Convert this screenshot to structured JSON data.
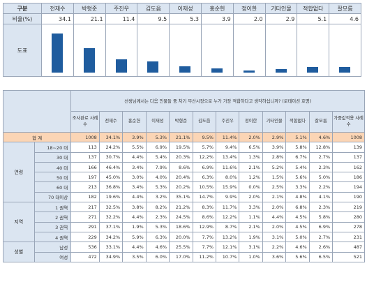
{
  "top": {
    "header_label": "구분",
    "ratio_label": "비율(%)",
    "chart_label": "도표",
    "candidates": [
      "전재수",
      "박형준",
      "주진우",
      "김도읍",
      "이재성",
      "홍순헌",
      "정이한",
      "기타인물",
      "적합없다",
      "잘모름"
    ],
    "values": [
      "34.1",
      "21.1",
      "11.4",
      "9.5",
      "5.3",
      "3.9",
      "2.0",
      "2.9",
      "5.1",
      "4.6"
    ],
    "bar_color": "#1f5c9e"
  },
  "main": {
    "question": "선생님께서는 다음 인물들 중 차기 부산시장으로 누가 가장 적합하다고 생각하십니까? (로테이션 호명)",
    "col_headers": [
      "조사완료 사례수",
      "전재수",
      "홍순헌",
      "이재성",
      "박형준",
      "김도읍",
      "주진우",
      "정이한",
      "기타인물",
      "적합없다",
      "잘모름",
      "가중값적용 사례수"
    ],
    "total": {
      "label": "합 계",
      "values": [
        "1008",
        "34.1%",
        "3.9%",
        "5.3%",
        "21.1%",
        "9.5%",
        "11.4%",
        "2.0%",
        "2.9%",
        "5.1%",
        "4.6%",
        "1008"
      ]
    },
    "groups": [
      {
        "name": "연령",
        "rows": [
          {
            "label": "18~20 대",
            "values": [
              "113",
              "24.2%",
              "5.5%",
              "6.9%",
              "19.5%",
              "5.7%",
              "9.4%",
              "6.5%",
              "3.9%",
              "5.8%",
              "12.8%",
              "139"
            ]
          },
          {
            "label": "30 대",
            "values": [
              "137",
              "30.7%",
              "4.4%",
              "5.4%",
              "20.3%",
              "12.2%",
              "13.4%",
              "1.3%",
              "2.8%",
              "6.7%",
              "2.7%",
              "137"
            ]
          },
          {
            "label": "40 대",
            "values": [
              "166",
              "46.4%",
              "3.4%",
              "7.9%",
              "8.6%",
              "6.9%",
              "11.6%",
              "2.1%",
              "5.2%",
              "5.4%",
              "2.3%",
              "162"
            ]
          },
          {
            "label": "50 대",
            "values": [
              "197",
              "45.0%",
              "3.0%",
              "4.0%",
              "20.4%",
              "6.3%",
              "8.0%",
              "1.2%",
              "1.5%",
              "5.6%",
              "5.0%",
              "186"
            ]
          },
          {
            "label": "60 대",
            "values": [
              "213",
              "36.8%",
              "3.4%",
              "5.3%",
              "20.2%",
              "10.5%",
              "15.9%",
              "0.0%",
              "2.5%",
              "3.3%",
              "2.2%",
              "194"
            ]
          },
          {
            "label": "70 대이상",
            "values": [
              "182",
              "19.6%",
              "4.4%",
              "3.2%",
              "35.1%",
              "14.7%",
              "9.9%",
              "2.0%",
              "2.1%",
              "4.8%",
              "4.1%",
              "190"
            ]
          }
        ]
      },
      {
        "name": "지역",
        "rows": [
          {
            "label": "1 권역",
            "values": [
              "217",
              "32.5%",
              "3.8%",
              "8.2%",
              "21.2%",
              "8.3%",
              "11.7%",
              "3.3%",
              "2.0%",
              "6.8%",
              "2.3%",
              "219"
            ]
          },
          {
            "label": "2 권역",
            "values": [
              "271",
              "32.2%",
              "4.4%",
              "2.3%",
              "24.5%",
              "8.6%",
              "12.2%",
              "1.1%",
              "4.4%",
              "4.5%",
              "5.8%",
              "280"
            ]
          },
          {
            "label": "3 권역",
            "values": [
              "291",
              "37.1%",
              "1.9%",
              "5.3%",
              "18.6%",
              "12.9%",
              "8.7%",
              "2.1%",
              "2.0%",
              "4.5%",
              "6.9%",
              "278"
            ]
          },
          {
            "label": "4 권역",
            "values": [
              "229",
              "34.2%",
              "5.9%",
              "6.3%",
              "20.0%",
              "7.7%",
              "13.2%",
              "1.9%",
              "3.1%",
              "5.0%",
              "2.7%",
              "231"
            ]
          }
        ]
      },
      {
        "name": "성별",
        "rows": [
          {
            "label": "남성",
            "values": [
              "536",
              "33.1%",
              "4.4%",
              "4.6%",
              "25.5%",
              "7.7%",
              "12.1%",
              "3.1%",
              "2.2%",
              "4.6%",
              "2.6%",
              "487"
            ]
          },
          {
            "label": "여성",
            "values": [
              "472",
              "34.9%",
              "3.5%",
              "6.0%",
              "17.0%",
              "11.2%",
              "10.7%",
              "1.0%",
              "3.6%",
              "5.6%",
              "6.5%",
              "521"
            ]
          }
        ]
      }
    ]
  }
}
